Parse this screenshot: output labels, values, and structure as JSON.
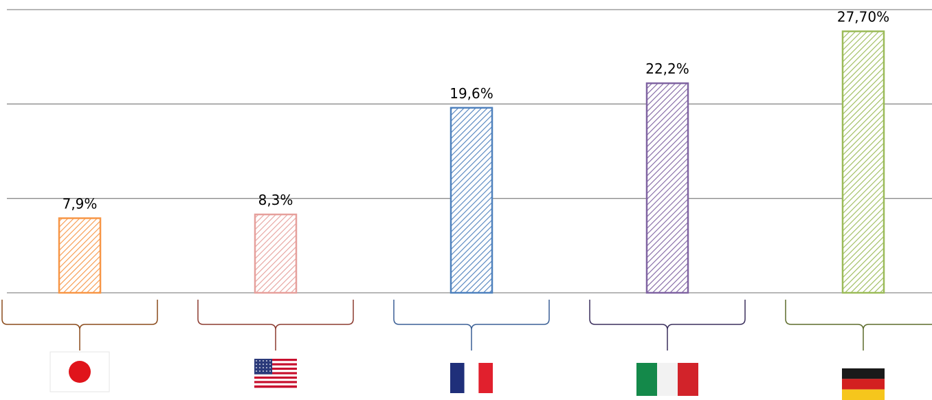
{
  "chart_data": {
    "type": "bar",
    "categories": [
      "Japan",
      "United States",
      "France",
      "Italy",
      "Germany"
    ],
    "values": [
      7.9,
      8.3,
      19.6,
      22.2,
      27.7
    ],
    "value_labels": [
      "7,9%",
      "8,3%",
      "19,6%",
      "22,2%",
      "27,70%"
    ],
    "ylim": [
      0,
      30
    ],
    "grid": true,
    "legend": "none",
    "bar_pattern": "diagonal-hatch",
    "bar_colors": [
      "#f79646",
      "#e6a09c",
      "#4f81bd",
      "#8064a2",
      "#9bbb59"
    ],
    "brace_colors": [
      "#8a4a1a",
      "#8b3a2f",
      "#3a5f95",
      "#3a2e5c",
      "#5c6b2a"
    ],
    "category_icons": [
      "japan-flag-icon",
      "us-flag-icon",
      "france-flag-icon",
      "italy-flag-icon",
      "germany-flag-icon"
    ]
  }
}
